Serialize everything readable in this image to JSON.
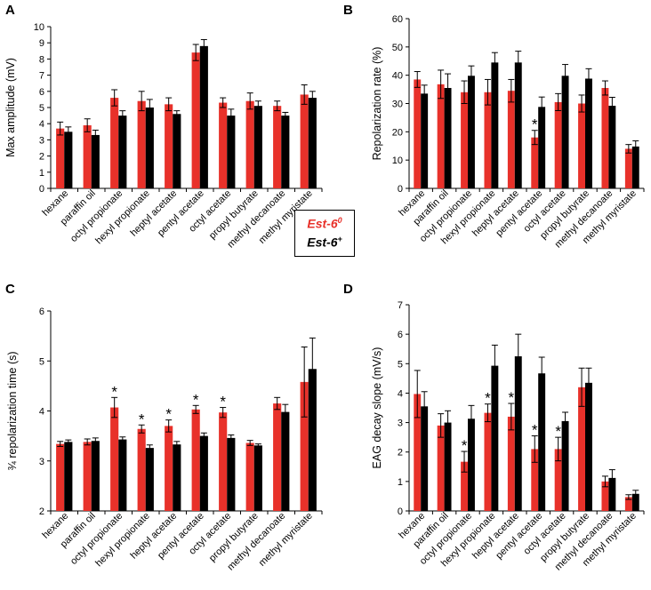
{
  "colors": {
    "red": "#e8312a",
    "black": "#000000"
  },
  "legend": {
    "label_red": "Est-6",
    "sup_red": "0",
    "label_black": "Est-6",
    "sup_black": "+"
  },
  "chart_data": [
    {
      "panel": "A",
      "type": "bar",
      "ylabel": "Max amplitude (mV)",
      "ylim": [
        0,
        10
      ],
      "yticks": [
        0,
        1,
        2,
        3,
        4,
        5,
        6,
        7,
        8,
        9,
        10
      ],
      "categories": [
        "hexane",
        "paraffin oil",
        "octyl propionate",
        "hexyl propionate",
        "heptyl acetate",
        "pentyl acetate",
        "octyl acetate",
        "propyl butyrate",
        "methyl decanoate",
        "methyl myristate"
      ],
      "series": [
        {
          "name": "Est-6 0",
          "color": "red",
          "values": [
            3.7,
            3.9,
            5.6,
            5.4,
            5.2,
            8.4,
            5.3,
            5.4,
            5.1,
            5.8
          ],
          "errors": [
            0.4,
            0.4,
            0.5,
            0.6,
            0.4,
            0.5,
            0.3,
            0.5,
            0.3,
            0.6
          ],
          "stars": [
            false,
            false,
            false,
            false,
            false,
            false,
            false,
            false,
            false,
            false
          ]
        },
        {
          "name": "Est-6 +",
          "color": "black",
          "values": [
            3.5,
            3.3,
            4.5,
            5.0,
            4.6,
            8.8,
            4.5,
            5.1,
            4.5,
            5.6
          ],
          "errors": [
            0.3,
            0.3,
            0.3,
            0.5,
            0.2,
            0.4,
            0.4,
            0.3,
            0.2,
            0.4
          ],
          "stars": [
            false,
            false,
            false,
            false,
            false,
            false,
            false,
            false,
            false,
            false
          ]
        }
      ]
    },
    {
      "panel": "B",
      "type": "bar",
      "ylabel": "Repolarization rate (%)",
      "ylim": [
        0,
        60
      ],
      "yticks": [
        0,
        10,
        20,
        30,
        40,
        50,
        60
      ],
      "categories": [
        "hexane",
        "paraffin oil",
        "octyl propionate",
        "hexyl propionate",
        "heptyl acetate",
        "pentyl acetate",
        "octyl acetate",
        "propyl butyrate",
        "methyl decanoate",
        "methyl myristate"
      ],
      "series": [
        {
          "name": "Est-6 0",
          "color": "red",
          "values": [
            38.5,
            36.8,
            34.0,
            34.0,
            34.5,
            18.0,
            30.5,
            30.0,
            35.5,
            14.0
          ],
          "errors": [
            2.8,
            5.0,
            4.0,
            4.5,
            4.0,
            2.5,
            3.0,
            3.0,
            2.5,
            1.5
          ],
          "stars": [
            false,
            false,
            false,
            false,
            false,
            true,
            false,
            false,
            false,
            false
          ]
        },
        {
          "name": "Est-6 +",
          "color": "black",
          "values": [
            33.5,
            35.5,
            39.8,
            44.5,
            44.5,
            28.8,
            39.8,
            38.8,
            29.2,
            14.8
          ],
          "errors": [
            3.0,
            5.0,
            3.5,
            3.5,
            4.0,
            3.5,
            4.0,
            3.5,
            3.0,
            2.0
          ],
          "stars": [
            false,
            false,
            false,
            false,
            false,
            false,
            false,
            false,
            false,
            false
          ]
        }
      ]
    },
    {
      "panel": "C",
      "type": "bar",
      "ylabel": "¾ repolarization time (s)",
      "ylim": [
        2,
        6
      ],
      "yticks": [
        2,
        3,
        4,
        5,
        6
      ],
      "categories": [
        "hexane",
        "paraffin oil",
        "octyl propionate",
        "hexyl propionate",
        "heptyl acetate",
        "pentyl acetate",
        "octyl acetate",
        "propyl butyrate",
        "methyl decanoate",
        "methyl myristate"
      ],
      "series": [
        {
          "name": "Est-6 0",
          "color": "red",
          "values": [
            3.34,
            3.38,
            4.07,
            3.64,
            3.7,
            4.03,
            3.97,
            3.36,
            4.15,
            4.58
          ],
          "errors": [
            0.05,
            0.06,
            0.2,
            0.08,
            0.12,
            0.08,
            0.1,
            0.05,
            0.12,
            0.7
          ],
          "stars": [
            false,
            false,
            true,
            true,
            true,
            true,
            true,
            false,
            false,
            false
          ]
        },
        {
          "name": "Est-6 +",
          "color": "black",
          "values": [
            3.38,
            3.4,
            3.43,
            3.26,
            3.33,
            3.5,
            3.46,
            3.31,
            3.98,
            4.84
          ],
          "errors": [
            0.04,
            0.06,
            0.05,
            0.06,
            0.06,
            0.06,
            0.06,
            0.03,
            0.15,
            0.62
          ],
          "stars": [
            false,
            false,
            false,
            false,
            false,
            false,
            false,
            false,
            false,
            false
          ]
        }
      ]
    },
    {
      "panel": "D",
      "type": "bar",
      "ylabel": "EAG decay slope (mV/s)",
      "ylim": [
        0,
        7
      ],
      "yticks": [
        0,
        1,
        2,
        3,
        4,
        5,
        6,
        7
      ],
      "categories": [
        "hexane",
        "paraffin oil",
        "octyl propionate",
        "hexyl propionate",
        "heptyl acetate",
        "pentyl acetate",
        "octyl acetate",
        "propyl butyrate",
        "methyl decanoate",
        "methyl myristate"
      ],
      "series": [
        {
          "name": "Est-6 0",
          "color": "red",
          "values": [
            3.97,
            2.9,
            1.67,
            3.33,
            3.2,
            2.1,
            2.1,
            4.2,
            1.0,
            0.47
          ],
          "errors": [
            0.8,
            0.4,
            0.35,
            0.3,
            0.45,
            0.45,
            0.4,
            0.65,
            0.18,
            0.08
          ],
          "stars": [
            false,
            false,
            true,
            true,
            true,
            true,
            true,
            false,
            false,
            false
          ]
        },
        {
          "name": "Est-6 +",
          "color": "black",
          "values": [
            3.55,
            3.0,
            3.13,
            4.93,
            5.25,
            4.67,
            3.05,
            4.35,
            1.12,
            0.58
          ],
          "errors": [
            0.5,
            0.4,
            0.45,
            0.7,
            0.75,
            0.55,
            0.3,
            0.5,
            0.28,
            0.12
          ],
          "stars": [
            false,
            false,
            false,
            false,
            false,
            false,
            false,
            false,
            false,
            false
          ]
        }
      ]
    }
  ]
}
